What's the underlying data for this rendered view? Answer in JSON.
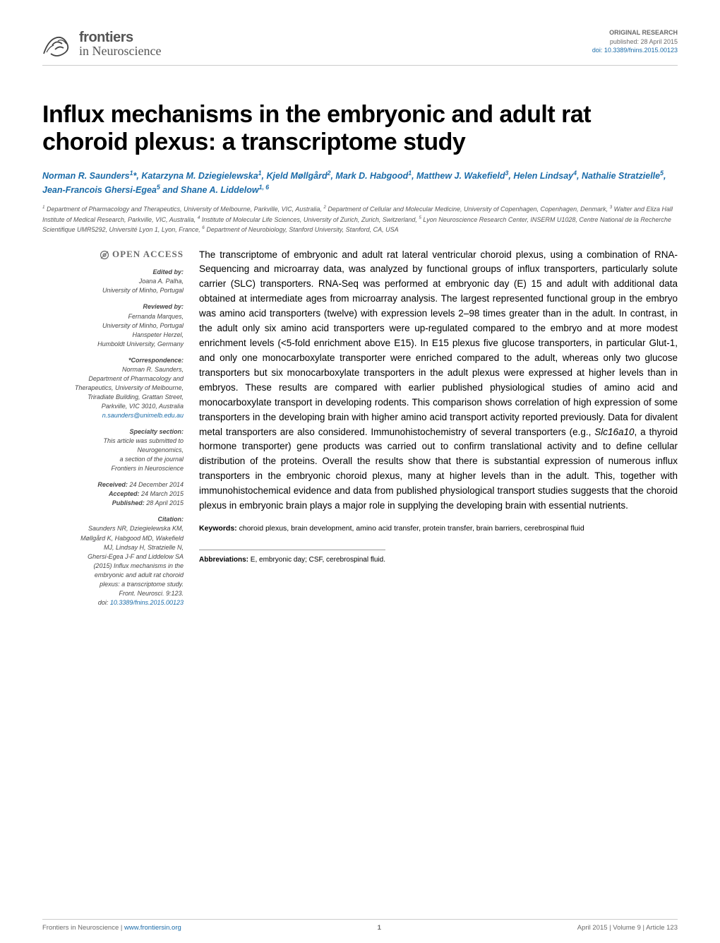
{
  "header": {
    "logo_top": "frontiers",
    "logo_bottom": "in Neuroscience",
    "article_type": "ORIGINAL RESEARCH",
    "published": "published: 28 April 2015",
    "doi": "doi: 10.3389/fnins.2015.00123",
    "doi_url": "10.3389/fnins.2015.00123"
  },
  "colors": {
    "link": "#1a6ba8",
    "muted": "#6a6a6a",
    "rule": "#cccccc",
    "text": "#000000"
  },
  "title": "Influx mechanisms in the embryonic and adult rat choroid plexus: a transcriptome study",
  "authors_html": "Norman R. Saunders<sup>1</sup>*, Katarzyna M. Dziegielewska<sup>1</sup>, Kjeld Møllgård<sup>2</sup>, Mark D. Habgood<sup>1</sup>, Matthew J. Wakefield<sup>3</sup>, Helen Lindsay<sup>4</sup>, Nathalie Stratzielle<sup>5</sup>, Jean-Francois Ghersi-Egea<sup>5</sup> and Shane A. Liddelow<sup>1, 6</sup>",
  "affiliations_html": "<sup>1</sup> Department of Pharmacology and Therapeutics, University of Melbourne, Parkville, VIC, Australia, <sup>2</sup> Department of Cellular and Molecular Medicine, University of Copenhagen, Copenhagen, Denmark, <sup>3</sup> Walter and Eliza Hall Institute of Medical Research, Parkville, VIC, Australia, <sup>4</sup> Institute of Molecular Life Sciences, University of Zurich, Zurich, Switzerland, <sup>5</sup> Lyon Neuroscience Research Center, INSERM U1028, Centre National de la Recherche Scientifique UMR5292, Université Lyon 1, Lyon, France, <sup>6</sup> Department of Neurobiology, Stanford University, Stanford, CA, USA",
  "sidebar": {
    "open_access": "OPEN ACCESS",
    "edited_by_label": "Edited by:",
    "edited_by": "Joana A. Palha,\nUniversity of Minho, Portugal",
    "reviewed_by_label": "Reviewed by:",
    "reviewed_by": "Fernanda Marques,\nUniversity of Minho, Portugal\nHanspeter Herzel,\nHumboldt University, Germany",
    "correspondence_label": "*Correspondence:",
    "correspondence": "Norman R. Saunders,\nDepartment of Pharmacology and\nTherapeutics, University of Melbourne,\nTriradiate Building, Grattan Street,\nParkville, VIC 3010, Australia",
    "correspondence_email": "n.saunders@unimelb.edu.au",
    "specialty_label": "Specialty section:",
    "specialty": "This article was submitted to\nNeurogenomics,\na section of the journal\nFrontiers in Neuroscience",
    "received_label": "Received:",
    "received": " 24 December 2014",
    "accepted_label": "Accepted:",
    "accepted": " 24 March 2015",
    "published_label": "Published:",
    "published": " 28 April 2015",
    "citation_label": "Citation:",
    "citation": "Saunders NR, Dziegielewska KM,\nMøllgård K, Habgood MD, Wakefield\nMJ, Lindsay H, Stratzielle N,\nGhersi-Egea J-F and Liddelow SA\n(2015) Influx mechanisms in the\nembryonic and adult rat choroid\nplexus: a transcriptome study.\nFront. Neurosci. 9:123.\ndoi: 10.3389/fnins.2015.00123",
    "citation_doi": "10.3389/fnins.2015.00123"
  },
  "abstract": "The transcriptome of embryonic and adult rat lateral ventricular choroid plexus, using a combination of RNA-Sequencing and microarray data, was analyzed by functional groups of influx transporters, particularly solute carrier (SLC) transporters. RNA-Seq was performed at embryonic day (E) 15 and adult with additional data obtained at intermediate ages from microarray analysis. The largest represented functional group in the embryo was amino acid transporters (twelve) with expression levels 2–98 times greater than in the adult. In contrast, in the adult only six amino acid transporters were up-regulated compared to the embryo and at more modest enrichment levels (<5-fold enrichment above E15). In E15 plexus five glucose transporters, in particular Glut-1, and only one monocarboxylate transporter were enriched compared to the adult, whereas only two glucose transporters but six monocarboxylate transporters in the adult plexus were expressed at higher levels than in embryos. These results are compared with earlier published physiological studies of amino acid and monocarboxylate transport in developing rodents. This comparison shows correlation of high expression of some transporters in the developing brain with higher amino acid transport activity reported previously. Data for divalent metal transporters are also considered. Immunohistochemistry of several transporters (e.g., Slc16a10, a thyroid hormone transporter) gene products was carried out to confirm translational activity and to define cellular distribution of the proteins. Overall the results show that there is substantial expression of numerous influx transporters in the embryonic choroid plexus, many at higher levels than in the adult. This, together with immunohistochemical evidence and data from published physiological transport studies suggests that the choroid plexus in embryonic brain plays a major role in supplying the developing brain with essential nutrients.",
  "keywords_label": "Keywords:",
  "keywords": " choroid plexus, brain development, amino acid transfer, protein transfer, brain barriers, cerebrospinal fluid",
  "abbrev_label": "Abbreviations:",
  "abbrev": " E, embryonic day; CSF, cerebrospinal fluid.",
  "footer": {
    "left_prefix": "Frontiers in Neuroscience | ",
    "left_link": "www.frontiersin.org",
    "page": "1",
    "right": "April 2015 | Volume 9 | Article 123"
  },
  "typography": {
    "title_fontsize": 34,
    "body_fontsize": 13.5,
    "sidebar_fontsize": 9,
    "authors_fontsize": 12.5,
    "affils_fontsize": 9,
    "footer_fontsize": 9.5
  }
}
